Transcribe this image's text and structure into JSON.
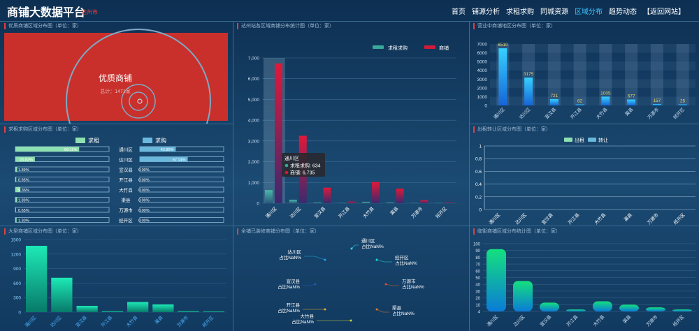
{
  "header": {
    "title": "商铺大数据平台",
    "city": "达州市",
    "nav": [
      "首页",
      "铺源分析",
      "求租求购",
      "同城资源",
      "区域分布",
      "趋势动态",
      "【返回网站】"
    ],
    "active_index": 4
  },
  "panels": {
    "quality": {
      "title": "优质商铺区域分布图（单位：家）",
      "center_label": "优质商铺",
      "total_label": "总计：1471家",
      "bg_color": "#c9302c"
    },
    "rentbuy": {
      "title": "求租求购区域分布图（单位：家）",
      "legend": [
        "求租",
        "求购"
      ],
      "rows": [
        {
          "district": "通川区",
          "rent_label": "68.11%",
          "rent": 68.11,
          "buy_label": "42.86%",
          "buy": 42.86
        },
        {
          "district": "达川区",
          "rent_label": "20.82%",
          "rent": 20.82,
          "buy_label": "57.14%",
          "buy": 57.14
        },
        {
          "district": "宣汉县",
          "rent_label": "1.89%",
          "rent": 1.89,
          "buy_label": "0.00%",
          "buy": 0
        },
        {
          "district": "开江县",
          "rent_label": "0.95%",
          "rent": 0.95,
          "buy_label": "0.00%",
          "buy": 0
        },
        {
          "district": "大竹县",
          "rent_label": "5.36%",
          "rent": 5.36,
          "buy_label": "0.00%",
          "buy": 0
        },
        {
          "district": "渠县",
          "rent_label": "1.89%",
          "rent": 1.89,
          "buy_label": "0.00%",
          "buy": 0
        },
        {
          "district": "万源市",
          "rent_label": "0.65%",
          "rent": 0.65,
          "buy_label": "0.00%",
          "buy": 0
        },
        {
          "district": "经开区",
          "rent_label": "1.30%",
          "rent": 1.3,
          "buy_label": "0.00%",
          "buy": 0
        }
      ],
      "colors": {
        "rent": "#8fe0b0",
        "buy": "#6ab8dc"
      }
    },
    "large": {
      "title": "大型商铺区域分布图（单位：家）"
    },
    "station": {
      "title": "达州站各区域商铺分布统计图（单位：家）"
    },
    "renovated": {
      "title": "全铺已装修商铺分布图（单位：家）",
      "labels": [
        {
          "name": "通川区",
          "pct": "占比NaN%"
        },
        {
          "name": "达川区",
          "pct": "占比NaN%"
        },
        {
          "name": "经开区",
          "pct": "占比NaN%"
        },
        {
          "name": "宣汉县",
          "pct": "占比NaN%"
        },
        {
          "name": "万源市",
          "pct": "占比NaN%"
        },
        {
          "name": "开江县",
          "pct": "占比NaN%"
        },
        {
          "name": "渠县",
          "pct": "占比NaN%"
        },
        {
          "name": "大竹县",
          "pct": "占比NaN%"
        }
      ]
    },
    "operating": {
      "title": "营业中商铺地区分布图（单位：家）"
    },
    "transfer": {
      "title": "出租转让区域分布图（单位：家）"
    },
    "street": {
      "title": "临街商铺区域分布统计图（单位：家）"
    }
  },
  "tooltip": {
    "title": "通川区",
    "lines": [
      "求租求购: 634",
      "商铺: 6,735"
    ]
  },
  "chart_data": [
    {
      "id": "large",
      "type": "bar",
      "categories": [
        "通川区",
        "达川区",
        "宣汉县",
        "开江县",
        "大竹县",
        "渠县",
        "万源市",
        "经开区"
      ],
      "values": [
        1370,
        710,
        130,
        20,
        210,
        160,
        20,
        15
      ],
      "ylim": [
        0,
        1500
      ],
      "yticks": [
        "0",
        "300",
        "600",
        "900",
        "1200",
        "1500"
      ],
      "colors": [
        "#1de9b6",
        "#087a6a"
      ]
    },
    {
      "id": "station",
      "type": "bar",
      "categories": [
        "通川区",
        "达川区",
        "宣汉县",
        "开江县",
        "大竹县",
        "渠县",
        "万源市",
        "经开区"
      ],
      "series": [
        {
          "name": "求租求购",
          "values": [
            634,
            170,
            40,
            10,
            70,
            40,
            10,
            10
          ]
        },
        {
          "name": "商铺",
          "values": [
            6735,
            3250,
            750,
            80,
            1020,
            700,
            150,
            40
          ]
        }
      ],
      "ylim": [
        0,
        7000
      ],
      "yticks": [
        "0",
        "1,000",
        "2,000",
        "3,000",
        "4,000",
        "5,000",
        "6,000",
        "7,000"
      ],
      "colors": {
        "rent": "#3aa89a",
        "shop": "#d11b38"
      }
    },
    {
      "id": "operating",
      "type": "bar",
      "categories": [
        "通川区",
        "达川区",
        "宣汉县",
        "开江县",
        "大竹县",
        "渠县",
        "万源市",
        "经开区"
      ],
      "values": [
        6510,
        3175,
        721,
        82,
        1005,
        677,
        157,
        25
      ],
      "value_labels": [
        "6510",
        "3175",
        "721",
        "82",
        "1005",
        "677",
        "157",
        "25"
      ],
      "ylim": [
        0,
        7000
      ],
      "yticks": [
        "0",
        "1000",
        "2000",
        "3000",
        "4000",
        "5000",
        "6000",
        "7000"
      ],
      "colors": {
        "bar": "#1f9cff",
        "label": "#e8d36a"
      }
    },
    {
      "id": "transfer",
      "type": "bar",
      "categories": [
        "通川区",
        "达川区",
        "宣汉县",
        "开江县",
        "大竹县",
        "渠县",
        "万源市",
        "经开区"
      ],
      "series": [
        {
          "name": "出租",
          "values": [
            0,
            0,
            0,
            0,
            0,
            0,
            0,
            0
          ]
        },
        {
          "name": "转让",
          "values": [
            0,
            0,
            0,
            0,
            0,
            0,
            0,
            0
          ]
        }
      ],
      "ylim": [
        0,
        1
      ],
      "yticks": [
        "0",
        "0.2",
        "0.4",
        "0.6",
        "0.8",
        "1"
      ],
      "colors": {
        "rent": "#8fe0b0",
        "transfer": "#6ab8dc"
      }
    },
    {
      "id": "street",
      "type": "bar",
      "categories": [
        "通川区",
        "达川区",
        "宣汉县",
        "开江县",
        "大竹县",
        "渠县",
        "万源市",
        "经开区"
      ],
      "values": [
        92,
        45,
        13,
        3,
        15,
        10,
        6,
        3
      ],
      "ylim": [
        0,
        100
      ],
      "yticks": [
        "4",
        "10",
        "20",
        "30",
        "40",
        "50",
        "60",
        "70",
        "80",
        "90",
        "100"
      ],
      "colors": [
        "#14e07e",
        "#0a7bd6"
      ]
    }
  ]
}
